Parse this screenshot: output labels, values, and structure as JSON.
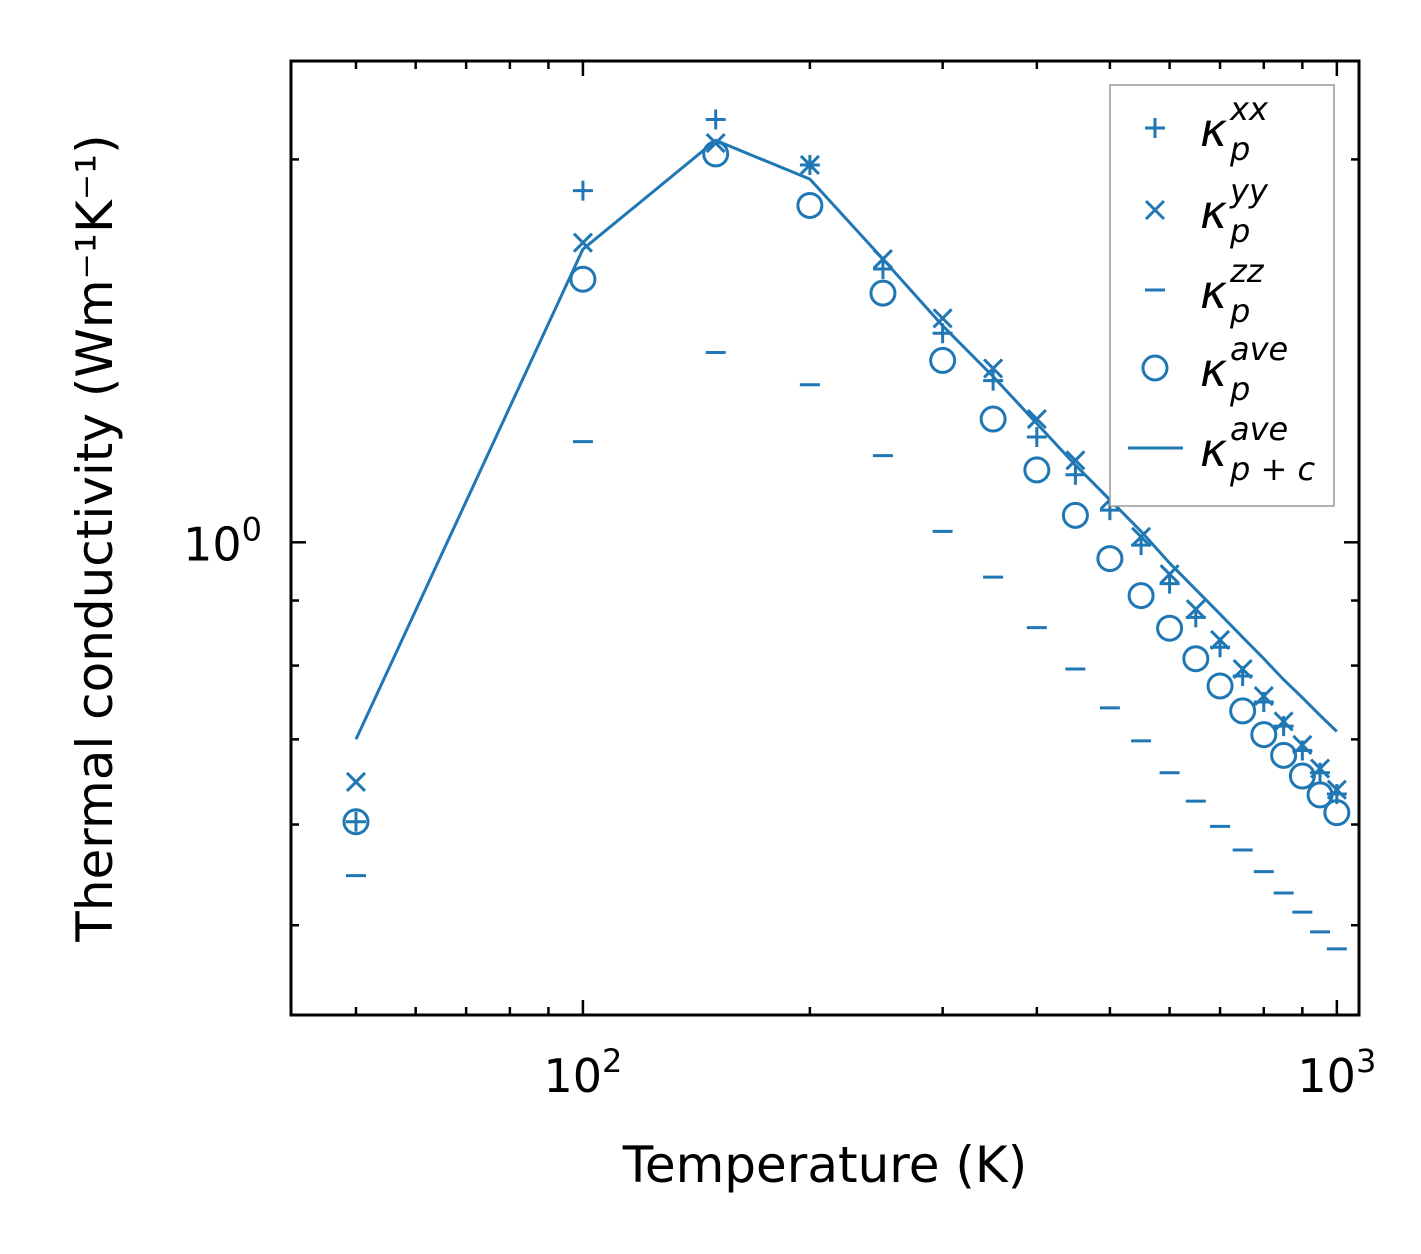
{
  "chart_data": {
    "type": "scatter",
    "xscale": "log",
    "yscale": "log",
    "xlabel": "Temperature (K)",
    "ylabel": "Thermal conductivity (Wm⁻¹K⁻¹)",
    "xlim": [
      41,
      1070
    ],
    "ylim": [
      0.425,
      2.39
    ],
    "x_ticks": [
      {
        "value": 100,
        "base": "10",
        "exp": "2"
      },
      {
        "value": 1000,
        "base": "10",
        "exp": "3"
      }
    ],
    "y_ticks": [
      {
        "value": 1.0,
        "base": "10",
        "exp": "0"
      }
    ],
    "legend_position": "top-right",
    "color": "#1f77b4",
    "series": [
      {
        "name": "κ_p^xx",
        "kappa": "κ",
        "sub": "p",
        "sup": "xx",
        "marker": "plus",
        "x": [
          50,
          100,
          150,
          200,
          250,
          300,
          350,
          400,
          450,
          500,
          550,
          600,
          650,
          700,
          750,
          800,
          850,
          900,
          950,
          1000
        ],
        "values": [
          0.603,
          1.89,
          2.15,
          1.98,
          1.64,
          1.46,
          1.34,
          1.21,
          1.13,
          1.06,
          0.995,
          0.928,
          0.873,
          0.827,
          0.785,
          0.749,
          0.717,
          0.686,
          0.659,
          0.634
        ]
      },
      {
        "name": "κ_p^yy",
        "kappa": "κ",
        "sub": "p",
        "sup": "yy",
        "marker": "x",
        "x": [
          50,
          100,
          150,
          200,
          250,
          300,
          350,
          400,
          450,
          500,
          550,
          600,
          650,
          700,
          750,
          800,
          850,
          900,
          950,
          1000
        ],
        "values": [
          0.648,
          1.72,
          2.06,
          1.98,
          1.67,
          1.5,
          1.37,
          1.25,
          1.16,
          1.08,
          1.01,
          0.944,
          0.886,
          0.838,
          0.795,
          0.757,
          0.723,
          0.693,
          0.664,
          0.639
        ]
      },
      {
        "name": "κ_p^zz",
        "kappa": "κ",
        "sub": "p",
        "sup": "zz",
        "marker": "dash",
        "x": [
          50,
          100,
          150,
          200,
          250,
          300,
          350,
          400,
          450,
          500,
          550,
          600,
          650,
          700,
          750,
          800,
          850,
          900,
          950,
          1000
        ],
        "values": [
          0.547,
          1.2,
          1.41,
          1.33,
          1.17,
          1.02,
          0.939,
          0.857,
          0.795,
          0.741,
          0.698,
          0.659,
          0.626,
          0.598,
          0.573,
          0.551,
          0.53,
          0.512,
          0.494,
          0.479
        ]
      },
      {
        "name": "κ_p^ave",
        "kappa": "κ",
        "sub": "p",
        "sup": "ave",
        "marker": "circle",
        "x": [
          50,
          100,
          150,
          200,
          250,
          300,
          350,
          400,
          450,
          500,
          550,
          600,
          650,
          700,
          750,
          800,
          850,
          900,
          950,
          1000
        ],
        "values": [
          0.603,
          1.61,
          2.02,
          1.84,
          1.57,
          1.39,
          1.25,
          1.14,
          1.05,
          0.971,
          0.908,
          0.856,
          0.81,
          0.771,
          0.737,
          0.706,
          0.68,
          0.655,
          0.633,
          0.613
        ]
      },
      {
        "name": "κ_p+c^ave",
        "kappa": "κ",
        "sub": "p + c",
        "sup": "ave",
        "marker": "line",
        "x": [
          50,
          100,
          150,
          200,
          250,
          300,
          350,
          400,
          450,
          500,
          550,
          600,
          650,
          700,
          750,
          800,
          850,
          900,
          950,
          1000
        ],
        "values": [
          0.7,
          1.7,
          2.07,
          1.93,
          1.67,
          1.48,
          1.35,
          1.24,
          1.15,
          1.08,
          1.02,
          0.963,
          0.918,
          0.878,
          0.842,
          0.81,
          0.78,
          0.755,
          0.731,
          0.71
        ]
      }
    ]
  }
}
